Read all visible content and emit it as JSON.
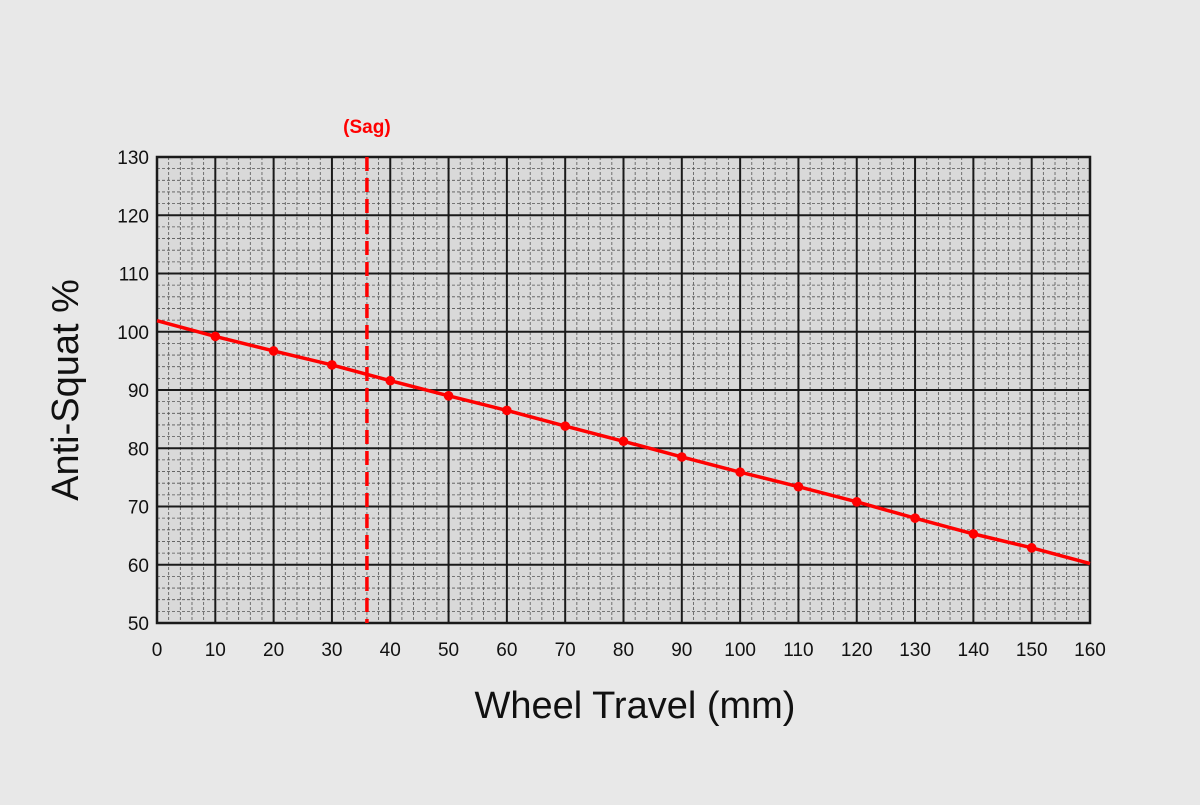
{
  "colors": {
    "background": "#e8e8e8",
    "plot_background": "#d9d9d9",
    "grid_major": "#1a1a1a",
    "grid_minor": "#555555",
    "series": "#ff0000"
  },
  "chart_data": {
    "type": "line",
    "title": "",
    "xlabel": "Wheel Travel (mm)",
    "ylabel": "Anti-Squat %",
    "xlim": [
      0,
      160
    ],
    "ylim": [
      50,
      130
    ],
    "x_ticks": [
      0,
      10,
      20,
      30,
      40,
      50,
      60,
      70,
      80,
      90,
      100,
      110,
      120,
      130,
      140,
      150,
      160
    ],
    "y_ticks": [
      50,
      60,
      70,
      80,
      90,
      100,
      110,
      120,
      130
    ],
    "x_tick_labels": [
      "0",
      "10",
      "20",
      "30",
      "40",
      "50",
      "60",
      "70",
      "80",
      "90",
      "100",
      "110",
      "120",
      "130",
      "140",
      "150",
      "160"
    ],
    "y_tick_labels": [
      "50",
      "60",
      "70",
      "80",
      "90",
      "100",
      "110",
      "120",
      "130"
    ],
    "grid": true,
    "minor_grid": true,
    "legend": "none",
    "series": [
      {
        "color": "#ff0000",
        "x": [
          0,
          10,
          20,
          30,
          40,
          50,
          60,
          70,
          80,
          90,
          100,
          110,
          120,
          130,
          140,
          150,
          160
        ],
        "y": [
          101.9,
          99.2,
          96.7,
          94.3,
          91.6,
          89.0,
          86.5,
          83.8,
          81.2,
          78.5,
          75.9,
          73.4,
          70.8,
          68.0,
          65.3,
          62.9,
          60.2
        ],
        "markers": [
          false,
          true,
          true,
          true,
          true,
          true,
          true,
          true,
          true,
          true,
          true,
          true,
          true,
          true,
          true,
          true,
          false
        ]
      }
    ],
    "annotations": [
      {
        "type": "vline",
        "x": 36,
        "style": "dashed",
        "color": "#ff0000",
        "label": "(Sag)"
      }
    ]
  }
}
